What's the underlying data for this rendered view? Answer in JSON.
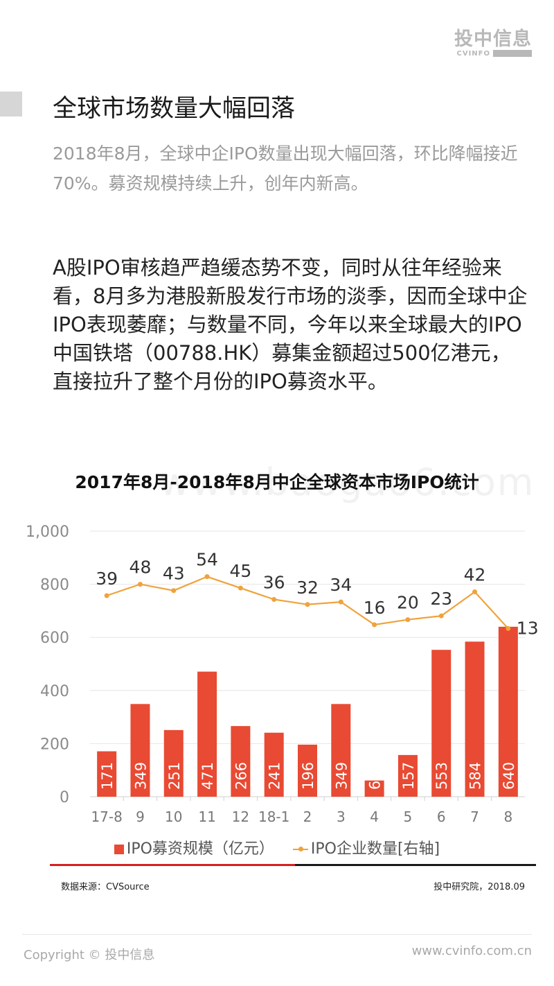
{
  "logo": {
    "cn": "投中信息",
    "en": "CVINFO"
  },
  "page": {
    "title": "全球市场数量大幅回落",
    "subtitle": "2018年8月，全球中企IPO数量出现大幅回落，环比降幅接近70%。募资规模持续上升，创年内新高。",
    "body": "A股IPO审核趋严趋缓态势不变，同时从往年经验来看，8月多为港股新股发行市场的淡季，因而全球中企IPO表现萎靡；与数量不同，今年以来全球最大的IPO中国铁塔（00788.HK）募集金额超过500亿港元，直接拉升了整个月份的IPO募资水平。"
  },
  "watermark": "www.baogao6.com",
  "chart_data": {
    "type": "bar+line",
    "title": "2017年8月-2018年8月中企全球资本市场IPO统计",
    "categories": [
      "17-8",
      "9",
      "10",
      "11",
      "12",
      "18-1",
      "2",
      "3",
      "4",
      "5",
      "6",
      "7",
      "8"
    ],
    "series": [
      {
        "name": "IPO募资规模（亿元）",
        "type": "bar",
        "axis": "left",
        "color": "#e84a33",
        "values": [
          171,
          349,
          251,
          471,
          266,
          241,
          196,
          349,
          61,
          157,
          553,
          584,
          640
        ]
      },
      {
        "name": "IPO企业数量[右轴]",
        "type": "line",
        "axis": "right",
        "color": "#f0a23a",
        "values": [
          39,
          48,
          43,
          54,
          45,
          36,
          32,
          34,
          16,
          20,
          23,
          42,
          13
        ]
      }
    ],
    "y_left": {
      "range": [
        0,
        1000
      ],
      "ticks": [
        "0",
        "200",
        "400",
        "600",
        "800",
        "1,000"
      ]
    },
    "y_right": {
      "range": [
        -120,
        90
      ]
    },
    "grid": true,
    "legend_position": "bottom"
  },
  "colors": {
    "accent_red": "#d81e1e",
    "rule_black": "#1a1a1a",
    "bar": "#e84a33",
    "line": "#f0a23a"
  },
  "footer": {
    "source": "数据来源：CVSource",
    "credit": "投中研究院，2018.09",
    "copyright": "Copyright © 投中信息",
    "url": "www.cvinfo.com.cn"
  }
}
